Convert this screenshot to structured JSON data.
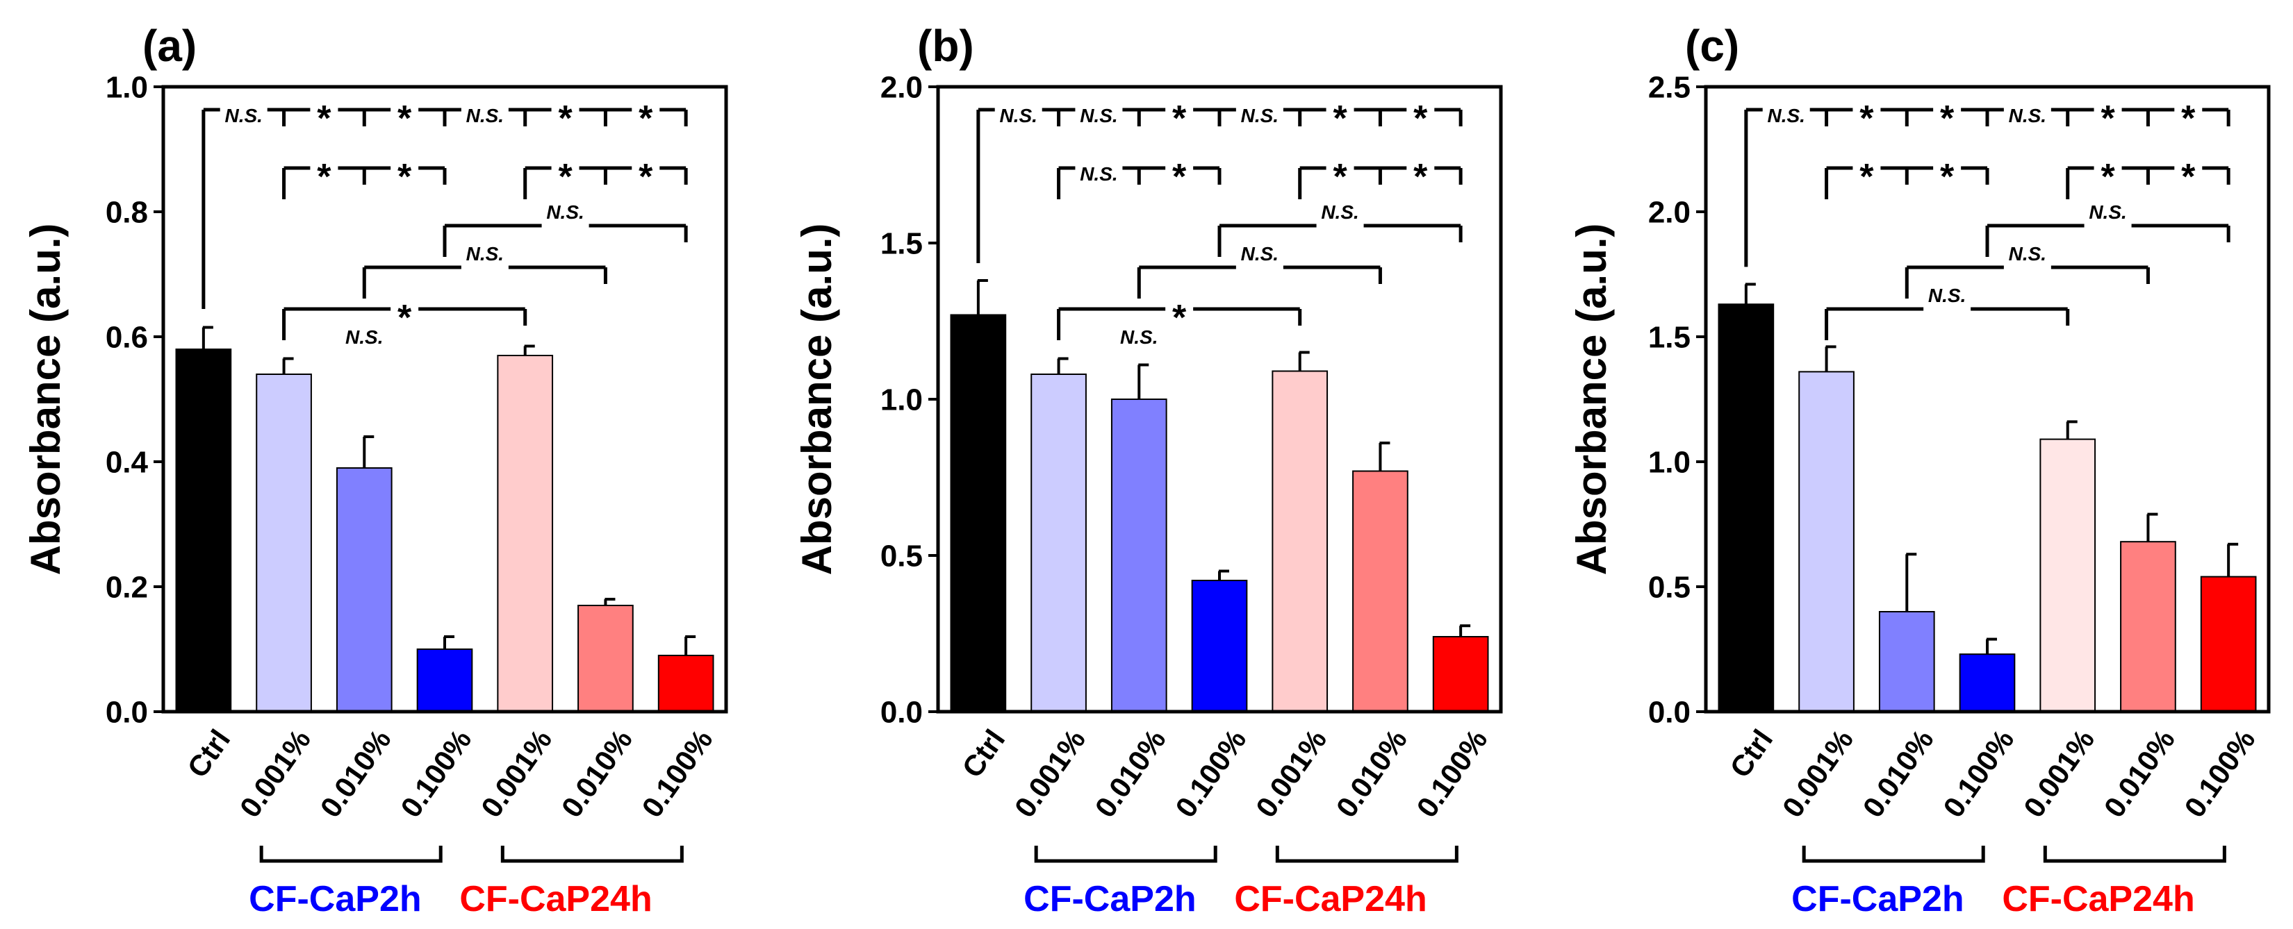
{
  "colors": {
    "ctrl": "#000000",
    "blue_light": "#ccccff",
    "blue_mid": "#8080ff",
    "blue_dark": "#0000ff",
    "red_light": "#ffcccc",
    "red_lighter": "#ffe6e6",
    "red_mid": "#ff8080",
    "red_dark": "#ff0000",
    "group_blue": "#0000ff",
    "group_red": "#ff0000"
  },
  "chart_data": [
    {
      "type": "bar",
      "panel_label": "(a)",
      "ylabel": "Absorbance (a.u.)",
      "ylim": [
        0,
        1.0
      ],
      "yticks": [
        0.0,
        0.2,
        0.4,
        0.6,
        0.8,
        1.0
      ],
      "ytick_labels": [
        "0.0",
        "0.2",
        "0.4",
        "0.6",
        "0.8",
        "1.0"
      ],
      "categories": [
        "Ctrl",
        "0.001%",
        "0.010%",
        "0.100%",
        "0.001%",
        "0.010%",
        "0.100%"
      ],
      "values": [
        0.58,
        0.54,
        0.39,
        0.1,
        0.57,
        0.17,
        0.09
      ],
      "errors": [
        0.035,
        0.025,
        0.05,
        0.02,
        0.015,
        0.01,
        0.03
      ],
      "bar_colors": [
        "ctrl",
        "blue_light",
        "blue_mid",
        "blue_dark",
        "red_light",
        "red_mid",
        "red_dark"
      ],
      "groups": [
        {
          "label": "CF-CaP2h",
          "color": "group_blue",
          "from": 1,
          "to": 3
        },
        {
          "label": "CF-CaP24h",
          "color": "group_red",
          "from": 4,
          "to": 6
        }
      ],
      "brackets": [
        {
          "level": 0,
          "root": 0,
          "targets": [
            1,
            2,
            3,
            4,
            5,
            6
          ],
          "labels": [
            "N.S.",
            "*",
            "*",
            "N.S.",
            "*",
            "*"
          ]
        },
        {
          "level": 1,
          "root": 1,
          "targets": [
            2,
            3
          ],
          "labels": [
            "*",
            "*"
          ]
        },
        {
          "level": 1,
          "root": 4,
          "targets": [
            5,
            6
          ],
          "labels": [
            "*",
            "*"
          ]
        },
        {
          "level": 2,
          "root": 3,
          "targets": [
            6
          ],
          "labels": [
            "N.S."
          ]
        },
        {
          "level": 3,
          "root": 2,
          "targets": [
            5
          ],
          "labels": [
            "N.S."
          ]
        },
        {
          "level": 4,
          "root": 1,
          "targets": [
            4
          ],
          "labels": [
            "*"
          ]
        }
      ],
      "bracket_extra_ns": {
        "label": "N.S.",
        "between": [
          1,
          4
        ]
      }
    },
    {
      "type": "bar",
      "panel_label": "(b)",
      "ylabel": "Absorbance (a.u.)",
      "ylim": [
        0,
        2.0
      ],
      "yticks": [
        0.0,
        0.5,
        1.0,
        1.5,
        2.0
      ],
      "ytick_labels": [
        "0.0",
        "0.5",
        "1.0",
        "1.5",
        "2.0"
      ],
      "categories": [
        "Ctrl",
        "0.001%",
        "0.010%",
        "0.100%",
        "0.001%",
        "0.010%",
        "0.100%"
      ],
      "values": [
        1.27,
        1.08,
        1.0,
        0.42,
        1.09,
        0.77,
        0.24
      ],
      "errors": [
        0.11,
        0.05,
        0.11,
        0.03,
        0.06,
        0.09,
        0.035
      ],
      "bar_colors": [
        "ctrl",
        "blue_light",
        "blue_mid",
        "blue_dark",
        "red_light",
        "red_mid",
        "red_dark"
      ],
      "groups": [
        {
          "label": "CF-CaP2h",
          "color": "group_blue",
          "from": 1,
          "to": 3
        },
        {
          "label": "CF-CaP24h",
          "color": "group_red",
          "from": 4,
          "to": 6
        }
      ],
      "brackets": [
        {
          "level": 0,
          "root": 0,
          "targets": [
            1,
            2,
            3,
            4,
            5,
            6
          ],
          "labels": [
            "N.S.",
            "N.S.",
            "*",
            "N.S.",
            "*",
            "*"
          ]
        },
        {
          "level": 1,
          "root": 1,
          "targets": [
            2,
            3
          ],
          "labels": [
            "N.S.",
            "*"
          ]
        },
        {
          "level": 1,
          "root": 4,
          "targets": [
            5,
            6
          ],
          "labels": [
            "*",
            "*"
          ]
        },
        {
          "level": 2,
          "root": 3,
          "targets": [
            6
          ],
          "labels": [
            "N.S."
          ]
        },
        {
          "level": 3,
          "root": 2,
          "targets": [
            5
          ],
          "labels": [
            "N.S."
          ]
        },
        {
          "level": 4,
          "root": 1,
          "targets": [
            4
          ],
          "labels": [
            "*"
          ]
        }
      ],
      "bracket_extra_ns": {
        "label": "N.S.",
        "between": [
          1,
          4
        ]
      }
    },
    {
      "type": "bar",
      "panel_label": "(c)",
      "ylabel": "Absorbance (a.u.)",
      "ylim": [
        0,
        2.5
      ],
      "yticks": [
        0.0,
        0.5,
        1.0,
        1.5,
        2.0,
        2.5
      ],
      "ytick_labels": [
        "0.0",
        "0.5",
        "1.0",
        "1.5",
        "2.0",
        "2.5"
      ],
      "categories": [
        "Ctrl",
        "0.001%",
        "0.010%",
        "0.100%",
        "0.001%",
        "0.010%",
        "0.100%"
      ],
      "values": [
        1.63,
        1.36,
        0.4,
        0.23,
        1.09,
        0.68,
        0.54
      ],
      "errors": [
        0.08,
        0.1,
        0.23,
        0.06,
        0.07,
        0.11,
        0.13
      ],
      "bar_colors": [
        "ctrl",
        "blue_light",
        "blue_mid",
        "blue_dark",
        "red_lighter",
        "red_mid",
        "red_dark"
      ],
      "groups": [
        {
          "label": "CF-CaP2h",
          "color": "group_blue",
          "from": 1,
          "to": 3
        },
        {
          "label": "CF-CaP24h",
          "color": "group_red",
          "from": 4,
          "to": 6
        }
      ],
      "brackets": [
        {
          "level": 0,
          "root": 0,
          "targets": [
            1,
            2,
            3,
            4,
            5,
            6
          ],
          "labels": [
            "N.S.",
            "*",
            "*",
            "N.S.",
            "*",
            "*"
          ]
        },
        {
          "level": 1,
          "root": 1,
          "targets": [
            2,
            3
          ],
          "labels": [
            "*",
            "*"
          ]
        },
        {
          "level": 1,
          "root": 4,
          "targets": [
            5,
            6
          ],
          "labels": [
            "*",
            "*"
          ]
        },
        {
          "level": 2,
          "root": 3,
          "targets": [
            6
          ],
          "labels": [
            "N.S."
          ]
        },
        {
          "level": 3,
          "root": 2,
          "targets": [
            5
          ],
          "labels": [
            "N.S."
          ]
        },
        {
          "level": 4,
          "root": 1,
          "targets": [
            4
          ],
          "labels": [
            "N.S."
          ]
        }
      ]
    }
  ]
}
